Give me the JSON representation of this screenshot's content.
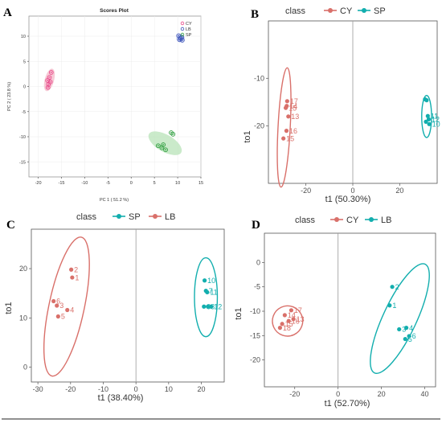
{
  "colors": {
    "CY": "#d9706a",
    "SP": "#12aeae",
    "LB": "#d9706a"
  },
  "chart_data": [
    {
      "id": "A",
      "panel_label": "A",
      "type": "scatter",
      "title": "Scores Plot",
      "xlabel": "PC 1 ( 51.2 %)",
      "ylabel": "PC 2 ( 23.8 %)",
      "xlim": [
        -22,
        15
      ],
      "ylim": [
        -18,
        14
      ],
      "xticks": [
        "-20",
        "-15",
        "-10",
        "-5",
        "0",
        "5",
        "10",
        "15"
      ],
      "xtick_values": [
        -20,
        -15,
        -10,
        -5,
        0,
        5,
        10,
        15
      ],
      "yticks": [
        "10",
        "5",
        "0",
        "-5",
        "-10",
        "-15"
      ],
      "ytick_values": [
        10,
        5,
        0,
        -5,
        -10,
        -15
      ],
      "grid": true,
      "legend": {
        "position": "top-right",
        "entries": [
          {
            "label": "CY",
            "color": "#e8488a"
          },
          {
            "label": "LB",
            "color": "#3b53b8"
          },
          {
            "label": "SP",
            "color": "#2e9e3e"
          }
        ]
      },
      "ellipses": [
        {
          "group": "CY",
          "cx": -17.6,
          "cy": 1.3,
          "rx": 1.0,
          "ry": 2.3,
          "angle": 15,
          "fill": "#f4b8c8"
        },
        {
          "group": "LB",
          "cx": 10.6,
          "cy": 9.6,
          "rx": 0.9,
          "ry": 0.8,
          "angle": 0,
          "fill": "#b9c3ec"
        },
        {
          "group": "SP",
          "cx": 7.3,
          "cy": -11.3,
          "rx": 4.0,
          "ry": 1.7,
          "angle": 30,
          "fill": "#b8e3b8"
        }
      ],
      "series": [
        {
          "name": "CY",
          "color": "#e8488a",
          "points": [
            [
              -17.2,
              2.8
            ],
            [
              -17.6,
              1.8
            ],
            [
              -18.0,
              1.2
            ],
            [
              -17.8,
              0.4
            ],
            [
              -17.4,
              0.9
            ],
            [
              -17.9,
              -0.2
            ]
          ]
        },
        {
          "name": "LB",
          "color": "#3b53b8",
          "points": [
            [
              10.2,
              10.1
            ],
            [
              10.6,
              9.6
            ],
            [
              11.0,
              9.2
            ],
            [
              10.4,
              9.3
            ],
            [
              10.9,
              9.8
            ]
          ]
        },
        {
          "name": "SP",
          "color": "#2e9e3e",
          "points": [
            [
              5.8,
              -11.8
            ],
            [
              6.6,
              -12.2
            ],
            [
              7.4,
              -12.6
            ],
            [
              8.6,
              -9.2
            ],
            [
              9.0,
              -9.5
            ],
            [
              6.9,
              -11.6
            ]
          ]
        }
      ]
    },
    {
      "id": "B",
      "panel_label": "B",
      "type": "scatter",
      "xlabel": "t1 (50.30%)",
      "ylabel": "to1",
      "xlim": [
        -36,
        36
      ],
      "ylim": [
        -32,
        2
      ],
      "xticks": [
        "-20",
        "0",
        "20"
      ],
      "xtick_values": [
        -20,
        0,
        20
      ],
      "yticks": [
        "-10",
        "-20"
      ],
      "ytick_values": [
        -10,
        -20
      ],
      "legend": {
        "position": "top",
        "title": "class",
        "entries": [
          {
            "label": "CY",
            "color": "#d9706a"
          },
          {
            "label": "SP",
            "color": "#12aeae"
          }
        ]
      },
      "ellipses": [
        {
          "group": "CY",
          "cx": -29.3,
          "cy": -20.3,
          "rx": 2.6,
          "ry": 12.5,
          "angle": 3,
          "color": "#d9706a"
        },
        {
          "group": "SP",
          "cx": 31.5,
          "cy": -18.0,
          "rx": 2.1,
          "ry": 4.4,
          "angle": 0,
          "color": "#12aeae"
        }
      ],
      "series": [
        {
          "name": "CY",
          "color": "#d9706a",
          "points": [
            {
              "x": -28.0,
              "y": -14.8,
              "label": "17"
            },
            {
              "x": -28.2,
              "y": -15.8,
              "label": "14"
            },
            {
              "x": -28.6,
              "y": -16.2,
              "label": "15"
            },
            {
              "x": -27.5,
              "y": -18.0,
              "label": "13"
            },
            {
              "x": -28.3,
              "y": -21.0,
              "label": "16"
            },
            {
              "x": -29.6,
              "y": -22.6,
              "label": "15"
            }
          ]
        },
        {
          "name": "SP",
          "color": "#12aeae",
          "points": [
            {
              "x": 30.8,
              "y": -14.4,
              "label": ""
            },
            {
              "x": 31.5,
              "y": -14.6,
              "label": ""
            },
            {
              "x": 32.0,
              "y": -17.9,
              "label": "11"
            },
            {
              "x": 32.4,
              "y": -18.6,
              "label": "12"
            },
            {
              "x": 32.6,
              "y": -19.6,
              "label": "10"
            },
            {
              "x": 31.2,
              "y": -19.1,
              "label": ""
            }
          ]
        }
      ]
    },
    {
      "id": "C",
      "panel_label": "C",
      "type": "scatter",
      "xlabel": "t1 (38.40%)",
      "ylabel": "to1",
      "xlim": [
        -32,
        27
      ],
      "ylim": [
        -3,
        28
      ],
      "xticks": [
        "-30",
        "-20",
        "-10",
        "0",
        "10",
        "20"
      ],
      "xtick_values": [
        -30,
        -20,
        -10,
        0,
        10,
        20
      ],
      "yticks": [
        "20",
        "10",
        "0"
      ],
      "ytick_values": [
        20,
        10,
        0
      ],
      "legend": {
        "position": "top",
        "title": "class",
        "entries": [
          {
            "label": "SP",
            "color": "#12aeae"
          },
          {
            "label": "LB",
            "color": "#d9706a"
          }
        ]
      },
      "ellipses": [
        {
          "group": "LB",
          "cx": -21.2,
          "cy": 12.3,
          "rx": 5.4,
          "ry": 14.4,
          "angle": 12,
          "color": "#d9706a"
        },
        {
          "group": "SP",
          "cx": 21.4,
          "cy": 14.2,
          "rx": 3.5,
          "ry": 8.0,
          "angle": 0,
          "color": "#12aeae"
        }
      ],
      "series": [
        {
          "name": "LB",
          "color": "#d9706a",
          "points": [
            {
              "x": -19.8,
              "y": 19.8,
              "label": "2"
            },
            {
              "x": -19.5,
              "y": 18.2,
              "label": "1"
            },
            {
              "x": -25.2,
              "y": 13.4,
              "label": "6"
            },
            {
              "x": -24.2,
              "y": 12.5,
              "label": "3"
            },
            {
              "x": -21.0,
              "y": 11.6,
              "label": "4"
            },
            {
              "x": -23.8,
              "y": 10.3,
              "label": "5"
            }
          ]
        },
        {
          "name": "SP",
          "color": "#12aeae",
          "points": [
            {
              "x": 21.0,
              "y": 17.6,
              "label": "10"
            },
            {
              "x": 21.4,
              "y": 15.5,
              "label": "7"
            },
            {
              "x": 21.8,
              "y": 15.2,
              "label": "11"
            },
            {
              "x": 20.8,
              "y": 12.3,
              "label": "9"
            },
            {
              "x": 22.0,
              "y": 12.3,
              "label": "8"
            },
            {
              "x": 23.0,
              "y": 12.3,
              "label": "12"
            }
          ]
        }
      ]
    },
    {
      "id": "D",
      "panel_label": "D",
      "type": "scatter",
      "xlabel": "t1 (52.70%)",
      "ylabel": "to1",
      "xlim": [
        -34,
        45
      ],
      "ylim": [
        -25.5,
        6
      ],
      "xticks": [
        "-20",
        "0",
        "20",
        "40"
      ],
      "xtick_values": [
        -20,
        0,
        20,
        40
      ],
      "yticks": [
        "0",
        "-5",
        "-10",
        "-15",
        "-20"
      ],
      "ytick_values": [
        0,
        -5,
        -10,
        -15,
        -20
      ],
      "legend": {
        "position": "top",
        "title": "class",
        "entries": [
          {
            "label": "CY",
            "color": "#d9706a"
          },
          {
            "label": "LB",
            "color": "#12aeae"
          }
        ]
      },
      "ellipses": [
        {
          "group": "CY",
          "cx": -23.3,
          "cy": -12.0,
          "rx": 7.0,
          "ry": 3.1,
          "angle": -25,
          "color": "#d9706a"
        },
        {
          "group": "LB",
          "cx": 28.5,
          "cy": -11.5,
          "rx": 7.7,
          "ry": 12.3,
          "angle": 25,
          "color": "#12aeae"
        }
      ],
      "series": [
        {
          "name": "CY",
          "color": "#d9706a",
          "points": [
            {
              "x": -21.6,
              "y": -9.8,
              "label": "17"
            },
            {
              "x": -24.6,
              "y": -10.8,
              "label": "14"
            },
            {
              "x": -20.6,
              "y": -11.6,
              "label": "13"
            },
            {
              "x": -22.8,
              "y": -12.0,
              "label": "16"
            },
            {
              "x": -25.8,
              "y": -12.6,
              "label": "15"
            },
            {
              "x": -26.8,
              "y": -13.4,
              "label": "18"
            }
          ]
        },
        {
          "name": "LB",
          "color": "#12aeae",
          "points": [
            {
              "x": 25.0,
              "y": -5.0,
              "label": "2"
            },
            {
              "x": 23.8,
              "y": -8.8,
              "label": "1"
            },
            {
              "x": 28.2,
              "y": -13.7,
              "label": "3"
            },
            {
              "x": 31.5,
              "y": -13.4,
              "label": "4"
            },
            {
              "x": 31.0,
              "y": -15.7,
              "label": "5"
            },
            {
              "x": 32.8,
              "y": -15.1,
              "label": "6"
            }
          ]
        }
      ]
    }
  ]
}
